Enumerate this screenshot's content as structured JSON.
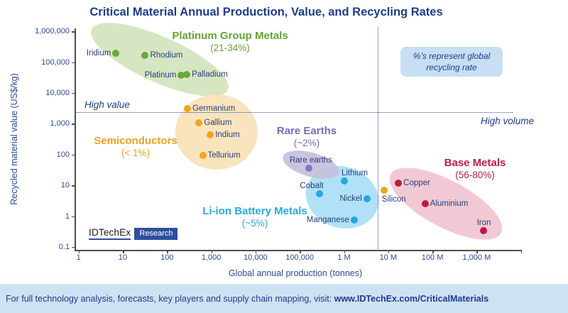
{
  "page": {
    "title": "Critical Material Annual Production, Value, and Recycling Rates",
    "note": {
      "line1": "%’s represent global",
      "line2": "recycling rate"
    },
    "logo": {
      "brand": "IDTechEx",
      "suffix": "Research"
    },
    "footer": {
      "text": "For full technology analysis, forecasts, key players and supply chain mapping, visit: ",
      "link": "www.IDTechEx.com/CriticalMaterials"
    }
  },
  "colors": {
    "navy": "#1e3c8c",
    "tick": "#2b4a9b",
    "point_label": "#27407e",
    "green": {
      "dot": "#6aa83c",
      "text": "#63a532",
      "fill": "#d2e4bd"
    },
    "orange": {
      "dot": "#f4a321",
      "text": "#f5a01e",
      "fill": "#fae2b8"
    },
    "purple": {
      "dot": "#8679bf",
      "text": "#7b6bb6",
      "fill": "#c6c0dc"
    },
    "blue": {
      "dot": "#25a8e0",
      "text": "#29a9e0",
      "fill": "#aadef5"
    },
    "red": {
      "dot": "#c11744",
      "text": "#c2194a",
      "fill": "#f0c4d0"
    }
  },
  "chart_data": {
    "type": "scatter",
    "title": "Critical Material Annual Production, Value, and Recycling Rates",
    "xlabel": "Global annual production (tonnes)",
    "ylabel": "Recycled material value (US$/kg)",
    "x_scale": "log",
    "y_scale": "log",
    "xlim": [
      1,
      10000000000
    ],
    "ylim": [
      0.1,
      1000000
    ],
    "x_ticks": [
      {
        "value": 1,
        "label": "1"
      },
      {
        "value": 10,
        "label": "10"
      },
      {
        "value": 100,
        "label": "100"
      },
      {
        "value": 1000,
        "label": "1,000"
      },
      {
        "value": 10000,
        "label": "10,000"
      },
      {
        "value": 100000,
        "label": "100,000"
      },
      {
        "value": 1000000,
        "label": "1 M"
      },
      {
        "value": 10000000,
        "label": "10 M"
      },
      {
        "value": 100000000,
        "label": "100 M"
      },
      {
        "value": 1000000000,
        "label": "1,000 M"
      },
      {
        "value": 10000000000,
        "label": ""
      }
    ],
    "y_ticks": [
      {
        "value": 1000000,
        "label": "1,000,000"
      },
      {
        "value": 100000,
        "label": "100,000"
      },
      {
        "value": 10000,
        "label": "10,000"
      },
      {
        "value": 1000,
        "label": "1,000"
      },
      {
        "value": 100,
        "label": "100"
      },
      {
        "value": 10,
        "label": "10"
      },
      {
        "value": 1,
        "label": "1"
      },
      {
        "value": 0.1,
        "label": "0.1"
      }
    ],
    "annotations": {
      "high_value_label": "High value",
      "high_volume_label": "High volume",
      "value_threshold_usd_per_kg": 2000,
      "volume_threshold_tonnes": 6000000
    },
    "groups": [
      {
        "id": "pgm",
        "name": "Platinum Group Metals",
        "rate": "(21-34%)",
        "color_key": "green",
        "points": [
          {
            "name": "Iridium",
            "tonnes": 7,
            "value_usd_kg": 190000,
            "label_side": "left"
          },
          {
            "name": "Rhodium",
            "tonnes": 32,
            "value_usd_kg": 165000,
            "label_side": "right"
          },
          {
            "name": "Platinum",
            "tonnes": 210,
            "value_usd_kg": 37000,
            "label_side": "left"
          },
          {
            "name": "Palladium",
            "tonnes": 280,
            "value_usd_kg": 40000,
            "label_side": "right"
          }
        ]
      },
      {
        "id": "semiconductors",
        "name": "Semiconductors",
        "rate": "(< 1%)",
        "color_key": "orange",
        "points": [
          {
            "name": "Germanium",
            "tonnes": 290,
            "value_usd_kg": 3100,
            "label_side": "right"
          },
          {
            "name": "Gallium",
            "tonnes": 530,
            "value_usd_kg": 1100,
            "label_side": "right"
          },
          {
            "name": "Indium",
            "tonnes": 950,
            "value_usd_kg": 440,
            "label_side": "right"
          },
          {
            "name": "Tellurium",
            "tonnes": 640,
            "value_usd_kg": 95,
            "label_side": "right"
          }
        ]
      },
      {
        "id": "li_ion",
        "name": "Li-ion Battery Metals",
        "rate": "(~5%)",
        "color_key": "blue",
        "points": [
          {
            "name": "Lithium",
            "tonnes": 1000000,
            "value_usd_kg": 14,
            "label_side": "above",
            "label_dx": 15
          },
          {
            "name": "Cobalt",
            "tonnes": 280000,
            "value_usd_kg": 5.2,
            "label_side": "above",
            "label_dx": -11
          },
          {
            "name": "Nickel",
            "tonnes": 3300000,
            "value_usd_kg": 3.7,
            "label_side": "left"
          },
          {
            "name": "Manganese",
            "tonnes": 1700000,
            "value_usd_kg": 0.75,
            "label_side": "left"
          }
        ]
      },
      {
        "id": "rare_earths",
        "name": "Rare Earths",
        "rate": "(~2%)",
        "color_key": "purple",
        "points": [
          {
            "name": "Rare earths",
            "tonnes": 160000,
            "value_usd_kg": 36,
            "label_side": "above",
            "label_dx": 3
          }
        ]
      },
      {
        "id": "silicon_group",
        "name": null,
        "rate": null,
        "color_key": "orange",
        "points": [
          {
            "name": "Silicon",
            "tonnes": 8000000,
            "value_usd_kg": 7,
            "label_side": "below",
            "label_dx": 14
          }
        ]
      },
      {
        "id": "base_metals",
        "name": "Base Metals",
        "rate": "(56-80%)",
        "color_key": "red",
        "points": [
          {
            "name": "Copper",
            "tonnes": 17000000,
            "value_usd_kg": 11.5,
            "label_side": "right"
          },
          {
            "name": "Aluminium",
            "tonnes": 68000000,
            "value_usd_kg": 2.5,
            "label_side": "right"
          },
          {
            "name": "Iron",
            "tonnes": 1400000000,
            "value_usd_kg": 0.34,
            "label_side": "above",
            "label_dx": 1
          }
        ]
      }
    ]
  }
}
